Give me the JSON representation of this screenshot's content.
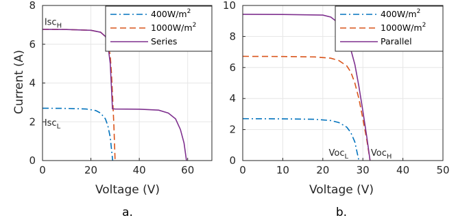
{
  "chart_data": [
    {
      "id": "a",
      "type": "line",
      "panel_label": "a.",
      "xlabel": "Voltage (V)",
      "ylabel": "Current (A)",
      "xlim": [
        0,
        70
      ],
      "ylim": [
        0,
        8
      ],
      "xticks": [
        0,
        20,
        40,
        60
      ],
      "yticks": [
        0,
        2,
        4,
        6,
        8
      ],
      "grid": true,
      "legend_position": "top-right",
      "annotations": [
        {
          "main": "Isc",
          "sub": "H",
          "x": 0.8,
          "y": 7.0
        },
        {
          "main": "Isc",
          "sub": "L",
          "x": 0.8,
          "y": 1.8
        }
      ],
      "series": [
        {
          "name": "400W/m²",
          "legend_main": "400W/m",
          "legend_sup": "2",
          "color": "#0072BD",
          "dash": "dashdot",
          "x": [
            0,
            10,
            18,
            22,
            24,
            26,
            27,
            28,
            28.5,
            29
          ],
          "y": [
            2.7,
            2.69,
            2.66,
            2.58,
            2.45,
            2.15,
            1.8,
            1.2,
            0.6,
            0
          ]
        },
        {
          "name": "1000W/m²",
          "legend_main": "1000W/m",
          "legend_sup": "2",
          "color": "#D95319",
          "dash": "dashed",
          "x": [
            0,
            10,
            20,
            24,
            26,
            27,
            28,
            28.5,
            29,
            29.5,
            30
          ],
          "y": [
            6.77,
            6.76,
            6.72,
            6.62,
            6.4,
            6.1,
            5.4,
            4.5,
            3.2,
            1.8,
            0
          ]
        },
        {
          "name": "Series",
          "legend_main": "Series",
          "legend_sup": "",
          "color": "#7E2F8E",
          "dash": "solid",
          "x": [
            0,
            10,
            20,
            24,
            26,
            27,
            28,
            28.6,
            28.9,
            30,
            40,
            48,
            52,
            55,
            57,
            58.5,
            59.5
          ],
          "y": [
            6.77,
            6.76,
            6.72,
            6.62,
            6.4,
            6.0,
            5.0,
            3.5,
            2.67,
            2.66,
            2.65,
            2.6,
            2.45,
            2.15,
            1.6,
            0.9,
            0
          ]
        }
      ]
    },
    {
      "id": "b",
      "type": "line",
      "panel_label": "b.",
      "xlabel": "Voltage (V)",
      "ylabel": "",
      "xlim": [
        0,
        50
      ],
      "ylim": [
        0,
        10
      ],
      "xticks": [
        0,
        10,
        20,
        30,
        40,
        50
      ],
      "yticks": [
        0,
        2,
        4,
        6,
        8,
        10
      ],
      "grid": true,
      "legend_position": "top-right",
      "annotations": [
        {
          "main": "Voc",
          "sub": "L",
          "x": 21.5,
          "y": 0.3
        },
        {
          "main": "Voc",
          "sub": "H",
          "x": 32.0,
          "y": 0.3
        }
      ],
      "series": [
        {
          "name": "400W/m²",
          "legend_main": "400W/m",
          "legend_sup": "2",
          "color": "#0072BD",
          "dash": "dashdot",
          "x": [
            0,
            10,
            18,
            22,
            24,
            26,
            27,
            28,
            28.5,
            29
          ],
          "y": [
            2.7,
            2.69,
            2.66,
            2.58,
            2.45,
            2.15,
            1.8,
            1.2,
            0.6,
            0
          ]
        },
        {
          "name": "1000W/m²",
          "legend_main": "1000W/m",
          "legend_sup": "2",
          "color": "#D95319",
          "dash": "dashed",
          "x": [
            0,
            10,
            18,
            22,
            24,
            26,
            27,
            28,
            29,
            30,
            31,
            31.8
          ],
          "y": [
            6.72,
            6.71,
            6.68,
            6.6,
            6.45,
            6.1,
            5.7,
            5.0,
            4.0,
            2.7,
            1.3,
            0
          ]
        },
        {
          "name": "Parallel",
          "legend_main": "Parallel",
          "legend_sup": "",
          "color": "#7E2F8E",
          "dash": "solid",
          "x": [
            0,
            10,
            20,
            22,
            23.5,
            24.5,
            26,
            28,
            29,
            30,
            31,
            31.8
          ],
          "y": [
            9.43,
            9.42,
            9.38,
            9.25,
            8.95,
            8.7,
            8.1,
            6.2,
            4.8,
            3.2,
            1.5,
            0
          ]
        }
      ]
    }
  ]
}
